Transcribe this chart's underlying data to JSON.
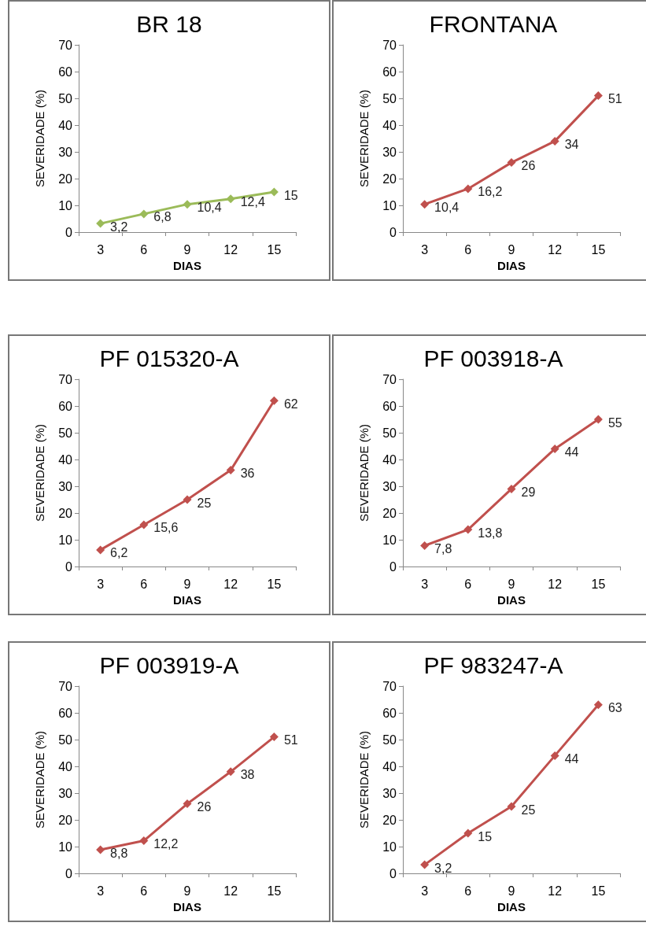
{
  "chart_data": [
    {
      "type": "line",
      "title": "BR 18",
      "xlabel": "DIAS",
      "ylabel": "SEVERIDADE (%)",
      "categories": [
        "3",
        "6",
        "9",
        "12",
        "15"
      ],
      "series": [
        {
          "color": "#9bbb59",
          "values": [
            3.2,
            6.8,
            10.4,
            12.4,
            15
          ],
          "value_labels": [
            "3,2",
            "6,8",
            "10,4",
            "12,4",
            "15"
          ]
        }
      ],
      "ylim": [
        0,
        70
      ],
      "yticks": [
        0,
        10,
        20,
        30,
        40,
        50,
        60,
        70
      ],
      "grid": false,
      "marker": "diamond",
      "line_style": "solid"
    },
    {
      "type": "line",
      "title": "FRONTANA",
      "xlabel": "DIAS",
      "ylabel": "SEVERIDADE (%)",
      "categories": [
        "3",
        "6",
        "9",
        "12",
        "15"
      ],
      "series": [
        {
          "color": "#c0504d",
          "values": [
            10.4,
            16.2,
            26,
            34,
            51
          ],
          "value_labels": [
            "10,4",
            "16,2",
            "26",
            "34",
            "51"
          ]
        }
      ],
      "ylim": [
        0,
        70
      ],
      "yticks": [
        0,
        10,
        20,
        30,
        40,
        50,
        60,
        70
      ],
      "grid": false,
      "marker": "diamond",
      "line_style": "solid"
    },
    {
      "type": "line",
      "title": "PF 015320-A",
      "xlabel": "DIAS",
      "ylabel": "SEVERIDADE (%)",
      "categories": [
        "3",
        "6",
        "9",
        "12",
        "15"
      ],
      "series": [
        {
          "color": "#c0504d",
          "values": [
            6.2,
            15.6,
            25,
            36,
            62
          ],
          "value_labels": [
            "6,2",
            "15,6",
            "25",
            "36",
            "62"
          ]
        }
      ],
      "ylim": [
        0,
        70
      ],
      "yticks": [
        0,
        10,
        20,
        30,
        40,
        50,
        60,
        70
      ],
      "grid": false,
      "marker": "diamond",
      "line_style": "solid"
    },
    {
      "type": "line",
      "title": "PF 003918-A",
      "xlabel": "DIAS",
      "ylabel": "SEVERIDADE (%)",
      "categories": [
        "3",
        "6",
        "9",
        "12",
        "15"
      ],
      "series": [
        {
          "color": "#c0504d",
          "values": [
            7.8,
            13.8,
            29,
            44,
            55
          ],
          "value_labels": [
            "7,8",
            "13,8",
            "29",
            "44",
            "55"
          ]
        }
      ],
      "ylim": [
        0,
        70
      ],
      "yticks": [
        0,
        10,
        20,
        30,
        40,
        50,
        60,
        70
      ],
      "grid": false,
      "marker": "diamond",
      "line_style": "solid"
    },
    {
      "type": "line",
      "title": "PF 003919-A",
      "xlabel": "DIAS",
      "ylabel": "SEVERIDADE (%)",
      "categories": [
        "3",
        "6",
        "9",
        "12",
        "15"
      ],
      "series": [
        {
          "color": "#c0504d",
          "values": [
            8.8,
            12.2,
            26,
            38,
            51
          ],
          "value_labels": [
            "8,8",
            "12,2",
            "26",
            "38",
            "51"
          ]
        }
      ],
      "ylim": [
        0,
        70
      ],
      "yticks": [
        0,
        10,
        20,
        30,
        40,
        50,
        60,
        70
      ],
      "grid": false,
      "marker": "diamond",
      "line_style": "solid"
    },
    {
      "type": "line",
      "title": "PF 983247-A",
      "xlabel": "DIAS",
      "ylabel": "SEVERIDADE (%)",
      "categories": [
        "3",
        "6",
        "9",
        "12",
        "15"
      ],
      "series": [
        {
          "color": "#c0504d",
          "values": [
            3.2,
            15,
            25,
            44,
            63
          ],
          "value_labels": [
            "3,2",
            "15",
            "25",
            "44",
            "63"
          ]
        }
      ],
      "ylim": [
        0,
        70
      ],
      "yticks": [
        0,
        10,
        20,
        30,
        40,
        50,
        60,
        70
      ],
      "grid": false,
      "marker": "diamond",
      "line_style": "solid"
    }
  ]
}
